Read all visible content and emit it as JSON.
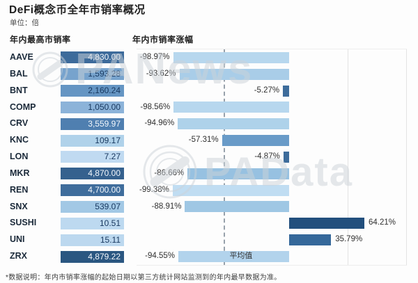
{
  "header": {
    "title": "DeFi概念币全年市销率概况",
    "unit": "单位：倍"
  },
  "watermarks": {
    "panews": "PANews",
    "padata": "PAData"
  },
  "footer": {
    "note": "*数据说明：年内市销率涨幅的起始日期以第三方统计网站监测到的年内最早数据为准。"
  },
  "chart_data": {
    "type": "bar",
    "orientation": "horizontal",
    "categories": [
      "AAVE",
      "BAL",
      "BNT",
      "COMP",
      "CRV",
      "KNC",
      "LON",
      "MKR",
      "REN",
      "SNX",
      "SUSHI",
      "UNI",
      "ZRX"
    ],
    "left_chart": {
      "title": "年内最高市销率",
      "style": "equal-width bars, fill darkness encodes value",
      "values": [
        4830.0,
        1593.28,
        2160.24,
        1050.0,
        3559.97,
        109.17,
        7.27,
        4870.0,
        4700.0,
        539.07,
        10.51,
        15.11,
        4879.22
      ]
    },
    "right_chart": {
      "title": "年内市销率涨幅",
      "unit": "%",
      "xlim": [
        -130,
        105
      ],
      "gridlines_pct": [
        50,
        100
      ],
      "average": {
        "label": "平均值",
        "value": -55.62
      },
      "values": [
        -98.97,
        -93.62,
        -5.27,
        -98.56,
        -94.96,
        -57.31,
        -4.87,
        -86.66,
        -99.38,
        -88.91,
        64.21,
        35.79,
        -94.55
      ]
    },
    "rows": [
      {
        "coin": "AAVE",
        "max_ps": 4830.0,
        "max_ps_label": "4,830.00",
        "max_ps_color": "#3d6b9b",
        "max_ps_text_color": "#f2f7fc",
        "change_pct": -98.97,
        "change_label": "-98.97%",
        "change_color": "#b7d7ee"
      },
      {
        "coin": "BAL",
        "max_ps": 1593.28,
        "max_ps_label": "1,593.28",
        "max_ps_color": "#77a3cd",
        "max_ps_text_color": "#17375e",
        "change_pct": -93.62,
        "change_label": "-93.62%",
        "change_color": "#a9cde8"
      },
      {
        "coin": "BNT",
        "max_ps": 2160.24,
        "max_ps_label": "2,160.24",
        "max_ps_color": "#6595c3",
        "max_ps_text_color": "#17375e",
        "change_pct": -5.27,
        "change_label": "-5.27%",
        "change_color": "#3e6c9b"
      },
      {
        "coin": "COMP",
        "max_ps": 1050.0,
        "max_ps_label": "1,050.00",
        "max_ps_color": "#8cb3d9",
        "max_ps_text_color": "#17375e",
        "change_pct": -98.56,
        "change_label": "-98.56%",
        "change_color": "#b7d7ee"
      },
      {
        "coin": "CRV",
        "max_ps": 3559.97,
        "max_ps_label": "3,559.97",
        "max_ps_color": "#4f7fb0",
        "max_ps_text_color": "#f2f7fc",
        "change_pct": -94.96,
        "change_label": "-94.96%",
        "change_color": "#aed2ea"
      },
      {
        "coin": "KNC",
        "max_ps": 109.17,
        "max_ps_label": "109.17",
        "max_ps_color": "#b0d2ea",
        "max_ps_text_color": "#17375e",
        "change_pct": -57.31,
        "change_label": "-57.31%",
        "change_color": "#699bc8"
      },
      {
        "coin": "LON",
        "max_ps": 7.27,
        "max_ps_label": "7.27",
        "max_ps_color": "#c0daf1",
        "max_ps_text_color": "#17375e",
        "change_pct": -4.87,
        "change_label": "-4.87%",
        "change_color": "#3e6c9b"
      },
      {
        "coin": "MKR",
        "max_ps": 4870.0,
        "max_ps_label": "4,870.00",
        "max_ps_color": "#35618e",
        "max_ps_text_color": "#f2f7fc",
        "change_pct": -86.66,
        "change_label": "-86.66%",
        "change_color": "#97c1e1"
      },
      {
        "coin": "REN",
        "max_ps": 4700.0,
        "max_ps_label": "4,700.00",
        "max_ps_color": "#3f6d9c",
        "max_ps_text_color": "#f2f7fc",
        "change_pct": -99.38,
        "change_label": "-99.38%",
        "change_color": "#c0ddf2"
      },
      {
        "coin": "SNX",
        "max_ps": 539.07,
        "max_ps_label": "539.07",
        "max_ps_color": "#a2c8e5",
        "max_ps_text_color": "#17375e",
        "change_pct": -88.91,
        "change_label": "-88.91%",
        "change_color": "#9fc7e4"
      },
      {
        "coin": "SUSHI",
        "max_ps": 10.51,
        "max_ps_label": "10.51",
        "max_ps_color": "#bdd9f0",
        "max_ps_text_color": "#17375e",
        "change_pct": 64.21,
        "change_label": "64.21%",
        "change_color": "#224f7d"
      },
      {
        "coin": "UNI",
        "max_ps": 15.11,
        "max_ps_label": "15.11",
        "max_ps_color": "#bcd8ef",
        "max_ps_text_color": "#17375e",
        "change_pct": 35.79,
        "change_label": "35.79%",
        "change_color": "#35689a"
      },
      {
        "coin": "ZRX",
        "max_ps": 4879.22,
        "max_ps_label": "4,879.22",
        "max_ps_color": "#2b5781",
        "max_ps_text_color": "#f2f7fc",
        "change_pct": -94.55,
        "change_label": "-94.55%",
        "change_color": "#b2d3ec"
      }
    ]
  }
}
